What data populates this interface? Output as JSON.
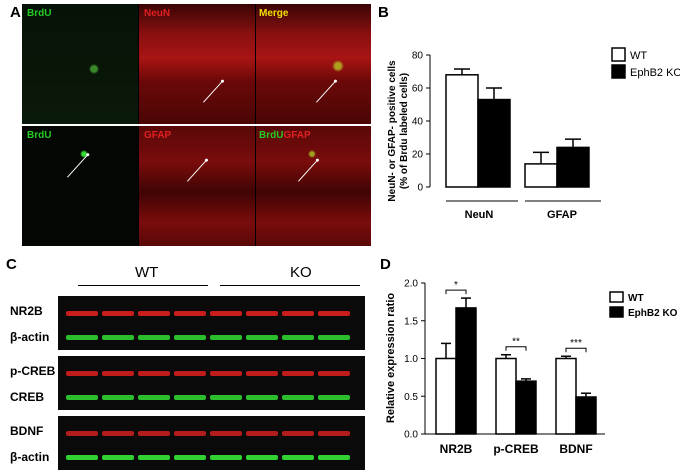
{
  "panel_a": {
    "label": "A",
    "top_row": [
      "BrdU",
      "NeuN",
      "Merge"
    ],
    "bottom_row": [
      "BrdU",
      "GFAP"
    ],
    "merge_prefix": "BrdU",
    "merge_suffix": "GFAP",
    "colors": {
      "green": "#22cc22",
      "red": "#e02020",
      "yellow": "#f2e200"
    }
  },
  "panel_b": {
    "label": "B",
    "ylabel_line1": "NeuN- or GFAP- positive cells",
    "ylabel_line2": "(% of Brdu labeled cells)",
    "yticks": [
      "0",
      "20",
      "40",
      "60",
      "80"
    ],
    "legend": [
      "WT",
      "EphB2 KO"
    ],
    "chart_data": {
      "type": "bar",
      "categories": [
        "NeuN",
        "GFAP"
      ],
      "series": [
        {
          "name": "WT",
          "values": [
            68,
            14
          ],
          "error": [
            3.5,
            7
          ],
          "color": "#ffffff"
        },
        {
          "name": "EphB2 KO",
          "values": [
            53,
            24
          ],
          "error": [
            7,
            5
          ],
          "color": "#000000"
        }
      ],
      "ylim": [
        0,
        80
      ]
    }
  },
  "panel_c": {
    "label": "C",
    "groups": [
      "WT",
      "KO"
    ],
    "blot_labels": [
      "NR2B",
      "β-actin",
      "p-CREB",
      "CREB",
      "BDNF",
      "β-actin"
    ]
  },
  "panel_d": {
    "label": "D",
    "ylabel": "Relative expression ratio",
    "yticks": [
      "0.0",
      "0.5",
      "1.0",
      "1.5",
      "2.0"
    ],
    "legend": [
      "WT",
      "EphB2 KO"
    ],
    "chart_data": {
      "type": "bar",
      "categories": [
        "NR2B",
        "p-CREB",
        "BDNF"
      ],
      "series": [
        {
          "name": "WT",
          "values": [
            1.0,
            1.0,
            1.0
          ],
          "error": [
            0.2,
            0.05,
            0.03
          ],
          "color": "#ffffff"
        },
        {
          "name": "EphB2 KO",
          "values": [
            1.67,
            0.7,
            0.49
          ],
          "error": [
            0.13,
            0.03,
            0.05
          ],
          "color": "#000000"
        }
      ],
      "significance": [
        "*",
        "**",
        "***"
      ],
      "ylim": [
        0,
        2.0
      ]
    }
  }
}
